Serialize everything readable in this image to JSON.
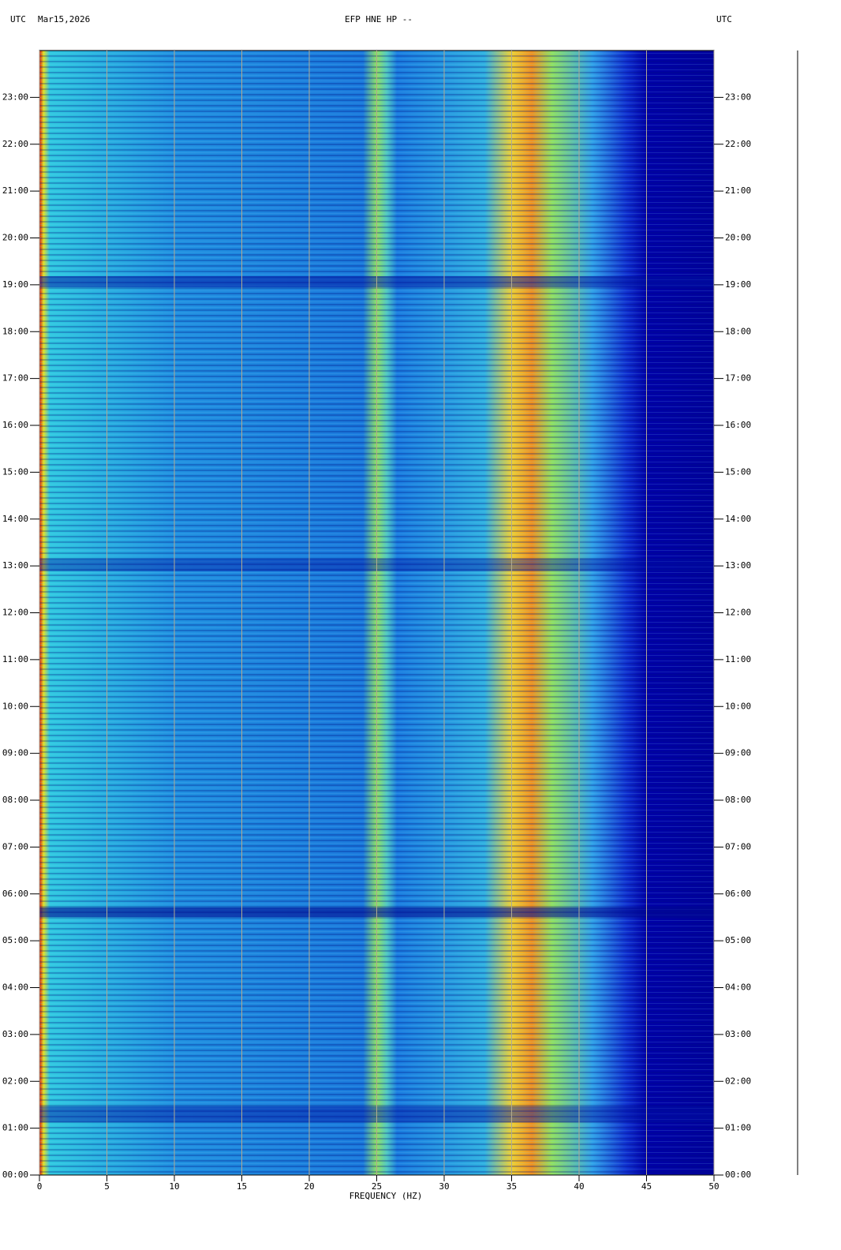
{
  "chart_data": {
    "type": "spectrogram",
    "title": "EFP HNE HP --",
    "date": "Mar15,2026",
    "timezone_label": "UTC",
    "xlabel": "FREQUENCY (HZ)",
    "xlim": [
      0,
      50
    ],
    "xticks": [
      0,
      5,
      10,
      15,
      20,
      25,
      30,
      35,
      40,
      45,
      50
    ],
    "ylim": [
      0,
      24
    ],
    "yticks": [
      {
        "value": 0,
        "label": "00:00"
      },
      {
        "value": 1,
        "label": "01:00"
      },
      {
        "value": 2,
        "label": "02:00"
      },
      {
        "value": 3,
        "label": "03:00"
      },
      {
        "value": 4,
        "label": "04:00"
      },
      {
        "value": 5,
        "label": "05:00"
      },
      {
        "value": 6,
        "label": "06:00"
      },
      {
        "value": 7,
        "label": "07:00"
      },
      {
        "value": 8,
        "label": "08:00"
      },
      {
        "value": 9,
        "label": "09:00"
      },
      {
        "value": 10,
        "label": "10:00"
      },
      {
        "value": 11,
        "label": "11:00"
      },
      {
        "value": 12,
        "label": "12:00"
      },
      {
        "value": 13,
        "label": "13:00"
      },
      {
        "value": 14,
        "label": "14:00"
      },
      {
        "value": 15,
        "label": "15:00"
      },
      {
        "value": 16,
        "label": "16:00"
      },
      {
        "value": 17,
        "label": "17:00"
      },
      {
        "value": 18,
        "label": "18:00"
      },
      {
        "value": 19,
        "label": "19:00"
      },
      {
        "value": 20,
        "label": "20:00"
      },
      {
        "value": 21,
        "label": "21:00"
      },
      {
        "value": 22,
        "label": "22:00"
      },
      {
        "value": 23,
        "label": "23:00"
      }
    ],
    "grid": true,
    "grid_color": "#b0a890"
  }
}
